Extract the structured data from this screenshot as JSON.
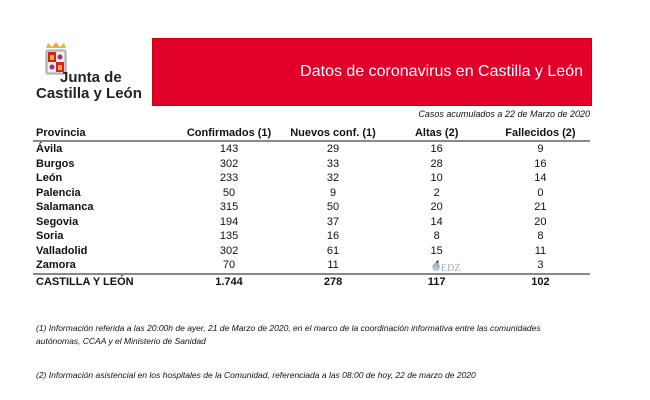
{
  "logo": {
    "line1": "Junta de",
    "line2": "Castilla y León"
  },
  "banner": {
    "title": "Datos de coronavirus en Castilla y León",
    "color": "#e0002a"
  },
  "subtitle": "Casos acumulados a 22 de Marzo de 2020",
  "table": {
    "headers": [
      "Provincia",
      "Confirmados (1)",
      "Nuevos conf. (1)",
      "Altas (2)",
      "Fallecidos (2)"
    ],
    "rows": [
      [
        "Ávila",
        "143",
        "29",
        "16",
        "9"
      ],
      [
        "Burgos",
        "302",
        "33",
        "28",
        "16"
      ],
      [
        "León",
        "233",
        "32",
        "10",
        "14"
      ],
      [
        "Palencia",
        "50",
        "9",
        "2",
        "0"
      ],
      [
        "Salamanca",
        "315",
        "50",
        "20",
        "21"
      ],
      [
        "Segovia",
        "194",
        "37",
        "14",
        "20"
      ],
      [
        "Soria",
        "135",
        "16",
        "8",
        "8"
      ],
      [
        "Valladolid",
        "302",
        "61",
        "15",
        "11"
      ],
      [
        "Zamora",
        "70",
        "11",
        "4",
        "3"
      ]
    ],
    "total": [
      "CASTILLA Y LEÓN",
      "1.744",
      "278",
      "117",
      "102"
    ]
  },
  "watermark": "EDZ",
  "notes": [
    "(1) Información referida a las 20:00h de ayer, 21 de Marzo de 2020, en el marco de la coordinación informativa entre las comunidades autónomas, CCAA y el Ministerio de Sanidad",
    "(2) Información asistencial en los hospitales de la Comunidad, referenciada a las 08:00 de hoy, 22 de marzo de 2020"
  ]
}
